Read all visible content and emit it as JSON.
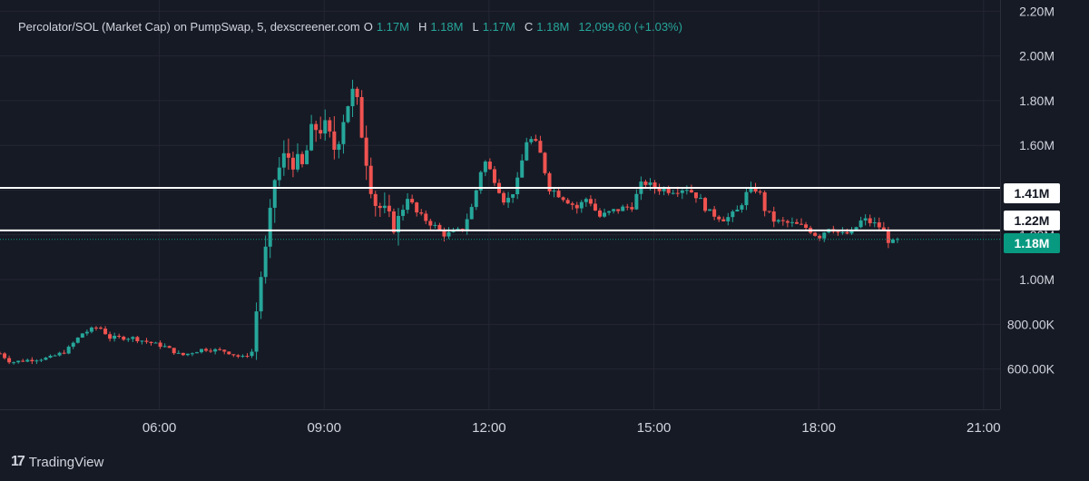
{
  "header": {
    "symbol": "Percolator/SOL (Market Cap) on PumpSwap, 5, dexscreener.com",
    "o_label": "O",
    "o_value": "1.17M",
    "h_label": "H",
    "h_value": "1.18M",
    "l_label": "L",
    "l_value": "1.17M",
    "c_label": "C",
    "c_value": "1.18M",
    "change": "12,099.60 (+1.03%)"
  },
  "footer": {
    "brand": "TradingView",
    "logo_text": "17"
  },
  "price_tags": {
    "line1": "1.41M",
    "line2": "1.22M",
    "last": "1.18M"
  },
  "colors": {
    "up": "#26a69a",
    "down": "#ef5350",
    "background": "#161a25",
    "grid": "#242733",
    "hline": "#ffffff",
    "last_tag": "#089981"
  },
  "chart_data": {
    "type": "candlestick",
    "y_ticks": [
      "600.00K",
      "800.00K",
      "1.00M",
      "1.20M",
      "1.40M",
      "1.60M",
      "1.80M",
      "2.00M",
      "2.20M"
    ],
    "y_tick_values": [
      600000,
      800000,
      1000000,
      1200000,
      1400000,
      1600000,
      1800000,
      2000000,
      2200000
    ],
    "ylim": [
      420000,
      2250000
    ],
    "x_ticks": [
      "06:00",
      "09:00",
      "12:00",
      "15:00",
      "18:00",
      "21:00"
    ],
    "x_tick_hours": [
      6,
      9,
      12,
      15,
      18,
      21
    ],
    "xlim_hours": [
      3.1,
      21.3
    ],
    "horizontal_lines": [
      1410000,
      1220000
    ],
    "last_price": 1180000,
    "path": [
      [
        3.1,
        670000
      ],
      [
        3.3,
        630000
      ],
      [
        3.6,
        640000
      ],
      [
        4.0,
        650000
      ],
      [
        4.3,
        680000
      ],
      [
        4.6,
        760000
      ],
      [
        4.9,
        790000
      ],
      [
        5.1,
        740000
      ],
      [
        5.5,
        740000
      ],
      [
        5.8,
        720000
      ],
      [
        6.1,
        700000
      ],
      [
        6.4,
        660000
      ],
      [
        6.8,
        690000
      ],
      [
        7.2,
        680000
      ],
      [
        7.5,
        650000
      ],
      [
        7.7,
        680000
      ],
      [
        7.8,
        950000
      ],
      [
        7.95,
        1150000
      ],
      [
        8.1,
        1450000
      ],
      [
        8.3,
        1560000
      ],
      [
        8.6,
        1500000
      ],
      [
        8.8,
        1680000
      ],
      [
        9.0,
        1680000
      ],
      [
        9.2,
        1580000
      ],
      [
        9.4,
        1780000
      ],
      [
        9.55,
        1840000
      ],
      [
        9.7,
        1640000
      ],
      [
        9.9,
        1350000
      ],
      [
        10.1,
        1300000
      ],
      [
        10.3,
        1230000
      ],
      [
        10.5,
        1380000
      ],
      [
        10.7,
        1290000
      ],
      [
        10.9,
        1260000
      ],
      [
        11.2,
        1200000
      ],
      [
        11.5,
        1220000
      ],
      [
        11.7,
        1330000
      ],
      [
        11.9,
        1540000
      ],
      [
        12.1,
        1450000
      ],
      [
        12.3,
        1340000
      ],
      [
        12.5,
        1420000
      ],
      [
        12.7,
        1640000
      ],
      [
        12.9,
        1590000
      ],
      [
        13.1,
        1410000
      ],
      [
        13.4,
        1360000
      ],
      [
        13.6,
        1320000
      ],
      [
        13.8,
        1370000
      ],
      [
        14.0,
        1280000
      ],
      [
        14.3,
        1310000
      ],
      [
        14.6,
        1330000
      ],
      [
        14.8,
        1440000
      ],
      [
        15.0,
        1410000
      ],
      [
        15.3,
        1400000
      ],
      [
        15.6,
        1410000
      ],
      [
        15.8,
        1370000
      ],
      [
        16.0,
        1300000
      ],
      [
        16.3,
        1270000
      ],
      [
        16.5,
        1300000
      ],
      [
        16.7,
        1390000
      ],
      [
        16.9,
        1410000
      ],
      [
        17.0,
        1320000
      ],
      [
        17.2,
        1260000
      ],
      [
        17.5,
        1250000
      ],
      [
        17.8,
        1230000
      ],
      [
        18.0,
        1190000
      ],
      [
        18.2,
        1240000
      ],
      [
        18.4,
        1200000
      ],
      [
        18.6,
        1210000
      ],
      [
        18.8,
        1270000
      ],
      [
        19.0,
        1250000
      ],
      [
        19.15,
        1230000
      ],
      [
        19.3,
        1160000
      ],
      [
        19.5,
        1180000
      ]
    ]
  }
}
